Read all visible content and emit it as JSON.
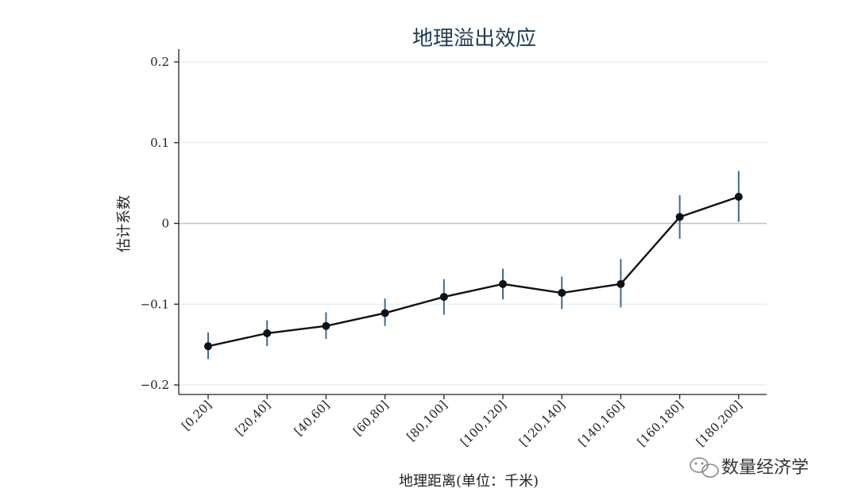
{
  "chart_data": {
    "type": "line",
    "title": "地理溢出效应",
    "xlabel": "地理距离(单位：千米)",
    "ylabel": "估计系数",
    "ylim": [
      -0.21,
      0.21
    ],
    "yticks": [
      0.2,
      0.1,
      0,
      -0.1,
      -0.2
    ],
    "ytick_labels": [
      "0.2",
      "0.1",
      "0",
      "−0.1",
      "−0.2"
    ],
    "categories": [
      "[0,20]",
      "[20,40]",
      "[40,60]",
      "[60,80]",
      "[80,100]",
      "[100,120]",
      "[120,140]",
      "[140,160]",
      "[160,180]",
      "[180,200]"
    ],
    "series": [
      {
        "values": [
          -0.152,
          -0.136,
          -0.127,
          -0.111,
          -0.091,
          -0.075,
          -0.086,
          -0.075,
          0.008,
          0.033
        ],
        "ci_lower": [
          -0.168,
          -0.152,
          -0.143,
          -0.127,
          -0.113,
          -0.094,
          -0.106,
          -0.104,
          -0.019,
          0.002
        ],
        "ci_upper": [
          -0.135,
          -0.12,
          -0.11,
          -0.093,
          -0.069,
          -0.056,
          -0.066,
          -0.044,
          0.035,
          0.065
        ],
        "color": "#111111",
        "error_color": "#3f6c8e"
      }
    ],
    "grid": true,
    "zero_line": true,
    "legend": "none"
  },
  "watermark": {
    "text": "数量经济学",
    "icon": "wechat-icon"
  }
}
